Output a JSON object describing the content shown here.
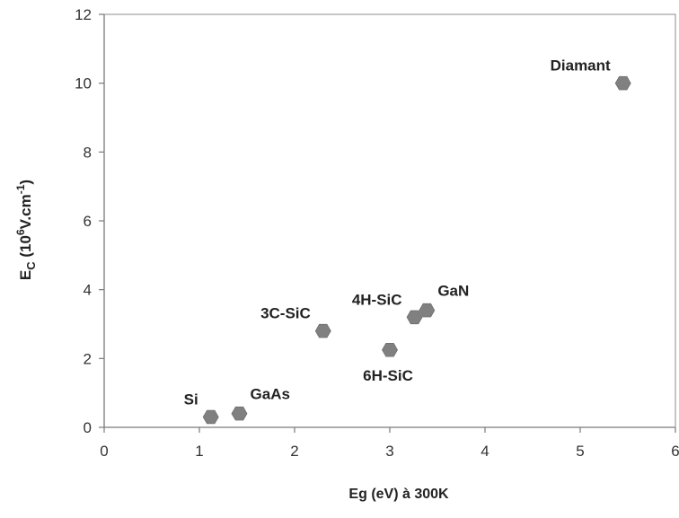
{
  "chart_data": {
    "type": "scatter",
    "title": "",
    "xlabel": "Eg (eV) à 300K",
    "ylabel": {
      "base": "E",
      "subscript": "C",
      "open": " (10",
      "exponent": "6",
      "unit": "V.cm",
      "unit_exponent": "-1",
      "close": ")"
    },
    "xlim": [
      0,
      6
    ],
    "ylim": [
      0,
      12
    ],
    "xticks": [
      0,
      1,
      2,
      3,
      4,
      5,
      6
    ],
    "yticks": [
      0,
      2,
      4,
      6,
      8,
      10,
      12
    ],
    "grid": false,
    "legend": "none",
    "marker_color": "#808080",
    "marker": "hexagon",
    "points": [
      {
        "label": "Si",
        "x": 1.12,
        "y": 0.3,
        "label_pos": "above-left"
      },
      {
        "label": "GaAs",
        "x": 1.42,
        "y": 0.4,
        "label_pos": "above-right"
      },
      {
        "label": "3C-SiC",
        "x": 2.3,
        "y": 2.8,
        "label_pos": "above-left"
      },
      {
        "label": "6H-SiC",
        "x": 3.0,
        "y": 2.25,
        "label_pos": "below"
      },
      {
        "label": "4H-SiC",
        "x": 3.26,
        "y": 3.2,
        "label_pos": "above-left"
      },
      {
        "label": "GaN",
        "x": 3.39,
        "y": 3.4,
        "label_pos": "above-right"
      },
      {
        "label": "Diamant",
        "x": 5.45,
        "y": 10.0,
        "label_pos": "above-left"
      }
    ]
  }
}
